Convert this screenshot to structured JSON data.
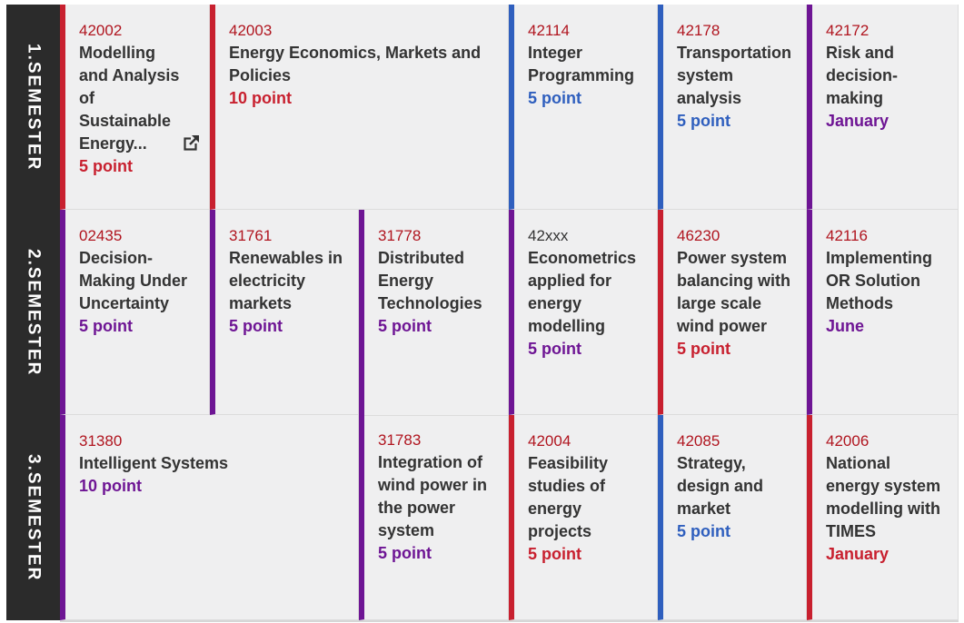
{
  "semesters": [
    {
      "label": "1.SEMESTER"
    },
    {
      "label": "2.SEMESTER"
    },
    {
      "label": "3.SEMESTER"
    }
  ],
  "courses": [
    {
      "code": "42002",
      "title": "Modelling and Analysis of Sustainable Energy...",
      "meta": "5 point",
      "color": "#c8202f",
      "external_link_icon": "external-link-icon"
    },
    {
      "code": "42003",
      "title": "Energy Economics, Markets and Policies",
      "meta": "10 point",
      "color": "#c8202f"
    },
    {
      "code": "42114",
      "title": "Integer Programming",
      "meta": "5 point",
      "color": "#2f5fbe"
    },
    {
      "code": "42178",
      "title": "Transportation system analysis",
      "meta": "5 point",
      "color": "#2f5fbe"
    },
    {
      "code": "42172",
      "title": "Risk and decision-making",
      "meta": "January",
      "color": "#6e1594"
    },
    {
      "code": "02435",
      "title": "Decision-Making Under Uncertainty",
      "meta": "5 point",
      "color": "#6e1594"
    },
    {
      "code": "31761",
      "title": "Renewables in electricity markets",
      "meta": "5 point",
      "color": "#6e1594"
    },
    {
      "code": "31778",
      "title": "Distributed Energy Technologies",
      "meta": "5 point",
      "color": "#6e1594"
    },
    {
      "code": "42xxx",
      "title": "Econometrics applied for energy modelling",
      "meta": "5 point",
      "color": "#6e1594"
    },
    {
      "code": "46230",
      "title": "Power system balancing with large scale wind power",
      "meta": "5 point",
      "color": "#c8202f"
    },
    {
      "code": "42116",
      "title": "Implementing OR Solution Methods",
      "meta": "June",
      "color": "#6e1594"
    },
    {
      "code": "31380",
      "title": "Intelligent Systems",
      "meta": "10 point",
      "color": "#6e1594"
    },
    {
      "code": "31783",
      "title": "Integration of wind power in the power system",
      "meta": "5 point",
      "color": "#6e1594"
    },
    {
      "code": "42004",
      "title": "Feasibility studies of energy projects",
      "meta": "5 point",
      "color": "#c8202f"
    },
    {
      "code": "42085",
      "title": "Strategy, design and market",
      "meta": "5 point",
      "color": "#2f5fbe"
    },
    {
      "code": "42006",
      "title": "National energy system modelling with TIMES",
      "meta": "January",
      "color": "#c8202f"
    }
  ]
}
